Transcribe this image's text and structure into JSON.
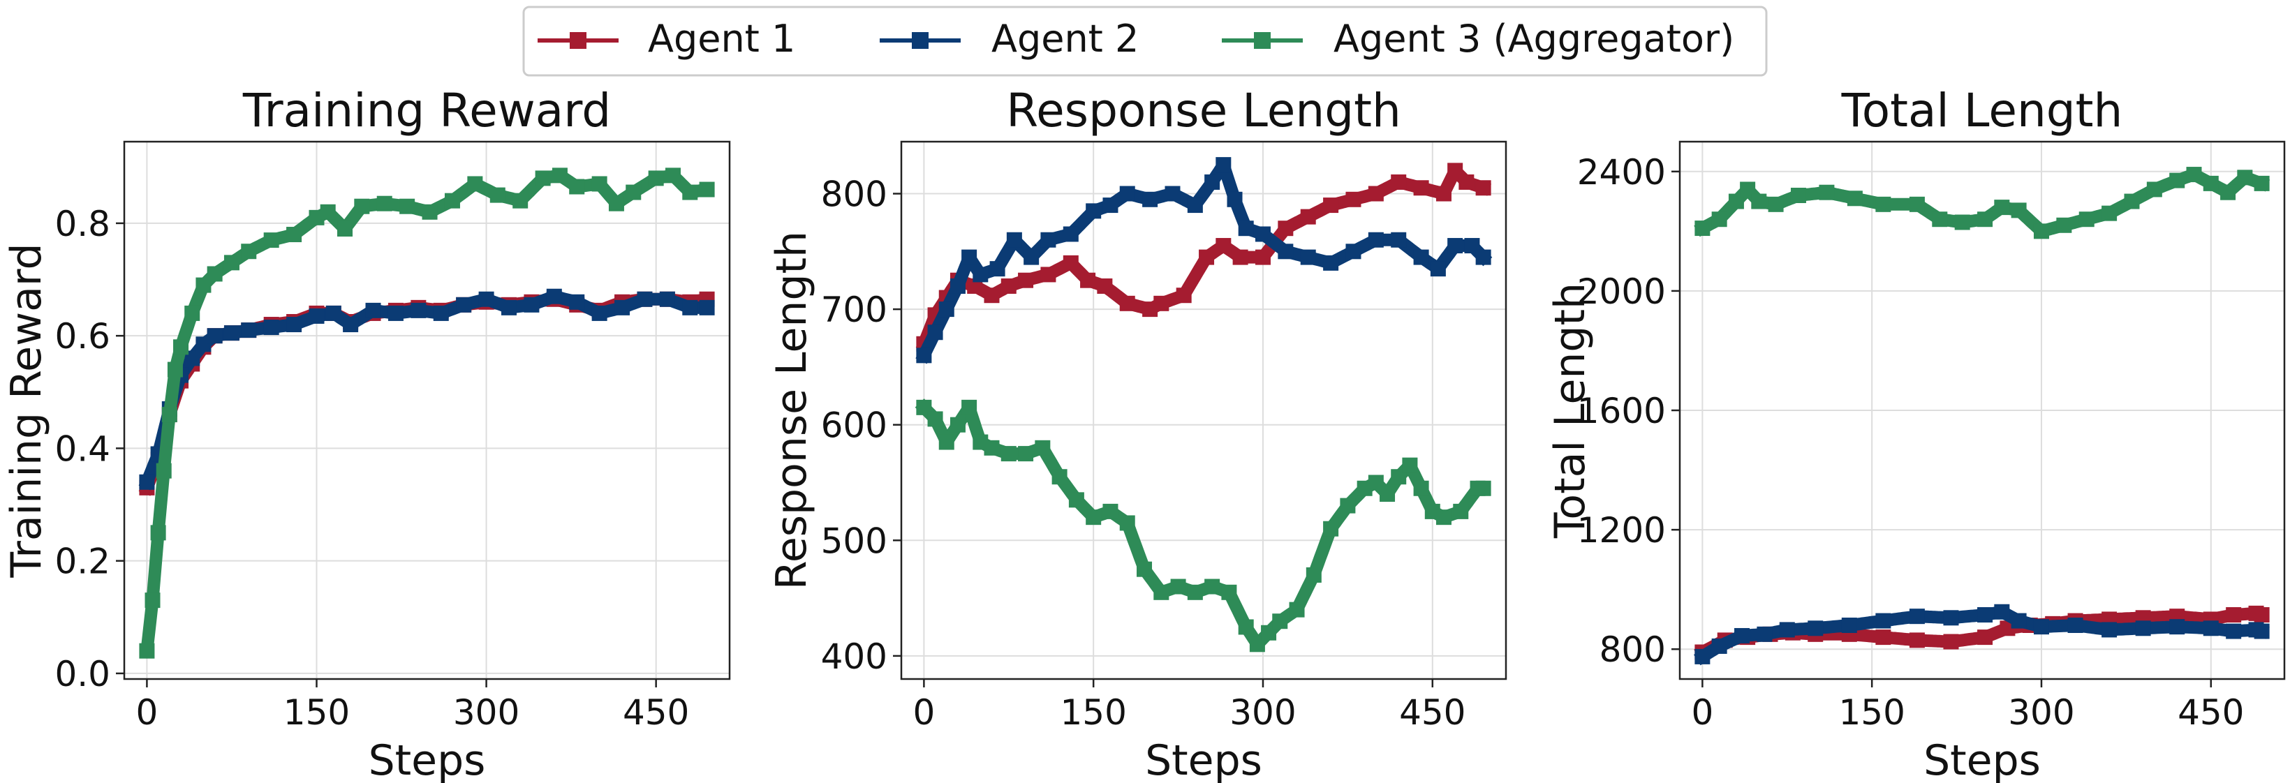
{
  "legend": {
    "items": [
      {
        "label": "Agent 1",
        "color": "#A51C30"
      },
      {
        "label": "Agent 2",
        "color": "#0B3B74"
      },
      {
        "label": "Agent 3 (Aggregator)",
        "color": "#2E8B57"
      }
    ]
  },
  "chart_data": [
    {
      "type": "line",
      "title": "Training Reward",
      "xlabel": "Steps",
      "ylabel": "Training Reward",
      "xlim": [
        -20,
        515
      ],
      "ylim": [
        -0.01,
        0.945
      ],
      "xticks": [
        0,
        150,
        300,
        450
      ],
      "yticks": [
        0.0,
        0.2,
        0.4,
        0.6,
        0.8
      ],
      "ytick_labels": [
        "0.0",
        "0.2",
        "0.4",
        "0.6",
        "0.8"
      ],
      "grid": true,
      "series": [
        {
          "name": "Agent 1",
          "color": "#A51C30",
          "x": [
            0,
            10,
            20,
            30,
            40,
            50,
            60,
            75,
            90,
            110,
            130,
            150,
            165,
            180,
            200,
            220,
            240,
            260,
            280,
            300,
            320,
            340,
            360,
            380,
            400,
            420,
            440,
            460,
            480,
            495
          ],
          "y": [
            0.33,
            0.38,
            0.46,
            0.52,
            0.55,
            0.58,
            0.6,
            0.605,
            0.61,
            0.62,
            0.625,
            0.64,
            0.64,
            0.625,
            0.64,
            0.645,
            0.65,
            0.645,
            0.655,
            0.66,
            0.655,
            0.66,
            0.665,
            0.655,
            0.645,
            0.66,
            0.665,
            0.665,
            0.66,
            0.665
          ]
        },
        {
          "name": "Agent 2",
          "color": "#0B3B74",
          "x": [
            0,
            10,
            20,
            30,
            40,
            50,
            60,
            75,
            90,
            110,
            130,
            150,
            165,
            180,
            200,
            220,
            240,
            260,
            280,
            300,
            320,
            340,
            360,
            380,
            400,
            420,
            440,
            460,
            480,
            495
          ],
          "y": [
            0.34,
            0.39,
            0.47,
            0.53,
            0.56,
            0.585,
            0.6,
            0.605,
            0.61,
            0.615,
            0.62,
            0.635,
            0.64,
            0.62,
            0.645,
            0.64,
            0.645,
            0.64,
            0.655,
            0.665,
            0.65,
            0.655,
            0.67,
            0.66,
            0.64,
            0.65,
            0.665,
            0.665,
            0.65,
            0.65
          ]
        },
        {
          "name": "Agent 3 (Aggregator)",
          "color": "#2E8B57",
          "x": [
            0,
            5,
            10,
            15,
            20,
            25,
            30,
            40,
            50,
            60,
            75,
            90,
            110,
            130,
            150,
            160,
            175,
            190,
            210,
            230,
            250,
            270,
            290,
            310,
            330,
            350,
            365,
            380,
            400,
            415,
            430,
            450,
            465,
            480,
            495
          ],
          "y": [
            0.04,
            0.13,
            0.25,
            0.36,
            0.46,
            0.54,
            0.58,
            0.64,
            0.69,
            0.71,
            0.73,
            0.75,
            0.77,
            0.78,
            0.81,
            0.82,
            0.79,
            0.83,
            0.835,
            0.83,
            0.82,
            0.84,
            0.87,
            0.85,
            0.84,
            0.88,
            0.885,
            0.865,
            0.87,
            0.835,
            0.855,
            0.88,
            0.885,
            0.855,
            0.86
          ]
        }
      ]
    },
    {
      "type": "line",
      "title": "Response Length",
      "xlabel": "Steps",
      "ylabel": "Response Length",
      "xlim": [
        -20,
        515
      ],
      "ylim": [
        380,
        845
      ],
      "xticks": [
        0,
        150,
        300,
        450
      ],
      "yticks": [
        400,
        500,
        600,
        700,
        800
      ],
      "ytick_labels": [
        "400",
        "500",
        "600",
        "700",
        "800"
      ],
      "grid": true,
      "series": [
        {
          "name": "Agent 1",
          "color": "#A51C30",
          "x": [
            0,
            10,
            20,
            30,
            45,
            60,
            75,
            90,
            110,
            130,
            145,
            160,
            180,
            200,
            210,
            230,
            250,
            265,
            280,
            300,
            320,
            340,
            360,
            380,
            400,
            420,
            440,
            460,
            470,
            480,
            495
          ],
          "y": [
            670,
            695,
            710,
            725,
            720,
            712,
            720,
            725,
            730,
            740,
            725,
            720,
            705,
            700,
            705,
            712,
            745,
            755,
            745,
            745,
            770,
            780,
            790,
            795,
            800,
            810,
            805,
            800,
            820,
            810,
            805
          ]
        },
        {
          "name": "Agent 2",
          "color": "#0B3B74",
          "x": [
            0,
            10,
            20,
            30,
            40,
            50,
            65,
            80,
            95,
            110,
            130,
            150,
            165,
            180,
            200,
            220,
            240,
            255,
            265,
            275,
            285,
            300,
            320,
            340,
            360,
            380,
            400,
            420,
            440,
            455,
            470,
            485,
            495
          ],
          "y": [
            660,
            680,
            700,
            720,
            745,
            730,
            735,
            760,
            745,
            760,
            765,
            785,
            790,
            800,
            795,
            800,
            790,
            810,
            825,
            795,
            770,
            765,
            750,
            745,
            740,
            750,
            760,
            760,
            745,
            735,
            755,
            755,
            745
          ]
        },
        {
          "name": "Agent 3 (Aggregator)",
          "color": "#2E8B57",
          "x": [
            0,
            10,
            20,
            30,
            40,
            50,
            60,
            75,
            90,
            105,
            120,
            135,
            150,
            165,
            180,
            195,
            210,
            225,
            240,
            255,
            270,
            285,
            295,
            305,
            315,
            330,
            345,
            360,
            375,
            390,
            400,
            410,
            420,
            430,
            440,
            450,
            460,
            475,
            490,
            495
          ],
          "y": [
            615,
            605,
            585,
            600,
            615,
            585,
            580,
            575,
            575,
            580,
            555,
            535,
            520,
            525,
            515,
            475,
            455,
            460,
            455,
            460,
            455,
            425,
            410,
            420,
            430,
            440,
            470,
            510,
            530,
            545,
            550,
            540,
            555,
            565,
            545,
            525,
            520,
            525,
            545,
            545
          ]
        }
      ]
    },
    {
      "type": "line",
      "title": "Total Length",
      "xlabel": "Steps",
      "ylabel": "Total Length",
      "xlim": [
        -20,
        515
      ],
      "ylim": [
        700,
        2500
      ],
      "xticks": [
        0,
        150,
        300,
        450
      ],
      "yticks": [
        800,
        1200,
        1600,
        2000,
        2400
      ],
      "ytick_labels": [
        "800",
        "1200",
        "1600",
        "2000",
        "2400"
      ],
      "grid": true,
      "series": [
        {
          "name": "Agent 1",
          "color": "#A51C30",
          "x": [
            0,
            20,
            40,
            60,
            80,
            100,
            130,
            160,
            190,
            220,
            250,
            270,
            290,
            310,
            330,
            360,
            390,
            420,
            450,
            470,
            490,
            495
          ],
          "y": [
            790,
            830,
            840,
            850,
            855,
            850,
            850,
            840,
            830,
            825,
            840,
            870,
            880,
            885,
            895,
            900,
            905,
            910,
            900,
            915,
            920,
            915
          ]
        },
        {
          "name": "Agent 2",
          "color": "#0B3B74",
          "x": [
            0,
            15,
            35,
            55,
            75,
            100,
            130,
            160,
            190,
            220,
            250,
            265,
            280,
            300,
            330,
            360,
            390,
            420,
            450,
            470,
            490,
            495
          ],
          "y": [
            775,
            810,
            845,
            850,
            865,
            870,
            880,
            895,
            910,
            905,
            915,
            925,
            895,
            875,
            880,
            865,
            870,
            875,
            870,
            860,
            865,
            860
          ]
        },
        {
          "name": "Agent 3 (Aggregator)",
          "color": "#2E8B57",
          "x": [
            0,
            15,
            30,
            40,
            50,
            65,
            85,
            110,
            135,
            160,
            190,
            210,
            230,
            250,
            265,
            280,
            300,
            320,
            340,
            360,
            380,
            400,
            420,
            435,
            450,
            465,
            480,
            495
          ],
          "y": [
            2210,
            2240,
            2300,
            2340,
            2300,
            2290,
            2320,
            2330,
            2310,
            2290,
            2290,
            2240,
            2230,
            2240,
            2280,
            2270,
            2200,
            2220,
            2240,
            2260,
            2300,
            2340,
            2370,
            2390,
            2360,
            2330,
            2380,
            2360
          ]
        }
      ]
    }
  ]
}
